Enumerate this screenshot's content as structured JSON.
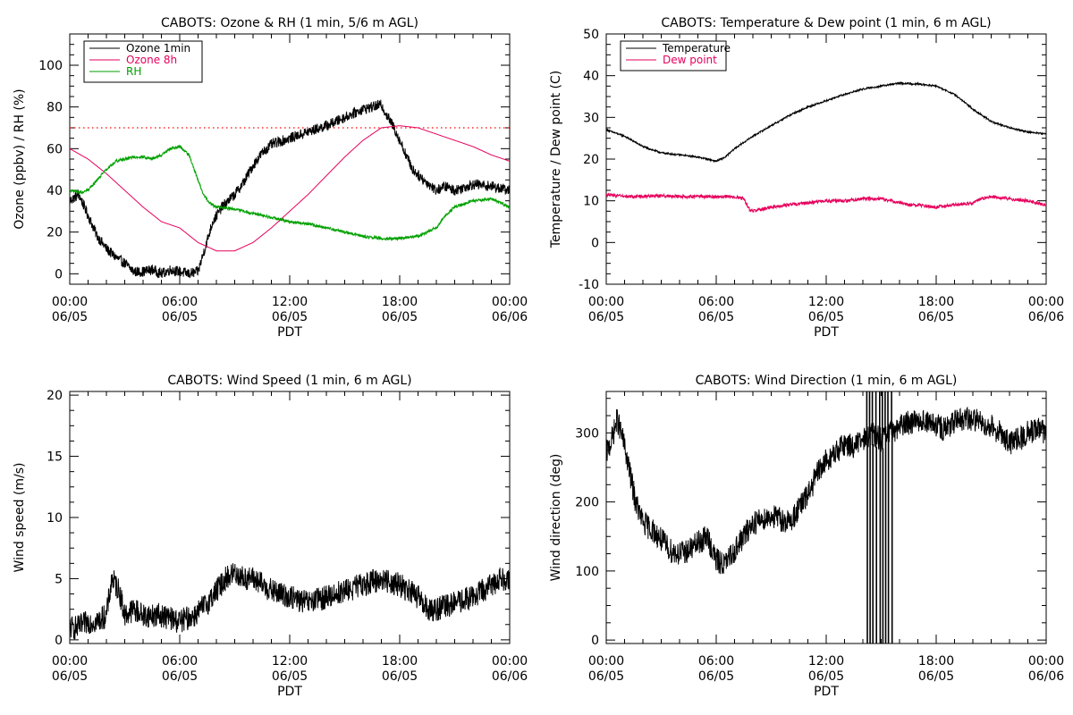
{
  "chart_data": [
    {
      "id": "ozone_rh",
      "type": "line",
      "title": "CABOTS: Ozone & RH (1 min, 5/6 m AGL)",
      "xlabel": "PDT",
      "ylabel": "Ozone (ppbv) / RH (%)",
      "xlim": [
        0,
        24
      ],
      "ylim": [
        -5,
        115
      ],
      "xticks": [
        {
          "v": 0,
          "l1": "00:00",
          "l2": "06/05"
        },
        {
          "v": 6,
          "l1": "06:00",
          "l2": "06/05"
        },
        {
          "v": 12,
          "l1": "12:00",
          "l2": "06/05"
        },
        {
          "v": 18,
          "l1": "18:00",
          "l2": "06/05"
        },
        {
          "v": 24,
          "l1": "00:00",
          "l2": "06/06"
        }
      ],
      "yticks": [
        0,
        20,
        40,
        60,
        80,
        100
      ],
      "grid": false,
      "legend": "top-left",
      "hline": {
        "y": 70,
        "color": "#ff0000",
        "style": "dotted"
      },
      "series": [
        {
          "name": "Ozone 1min",
          "color": "#000000",
          "noise": 2.5,
          "x": [
            0,
            0.5,
            1,
            1.5,
            2,
            2.5,
            3,
            3.5,
            4,
            4.5,
            5,
            5.5,
            6,
            6.5,
            7,
            7.3,
            7.8,
            8.3,
            9,
            9.5,
            10,
            10.5,
            11,
            12,
            13,
            14,
            15,
            16,
            16.5,
            17,
            17.3,
            17.7,
            18.2,
            18.7,
            19.3,
            20,
            20.5,
            21,
            22,
            23,
            24
          ],
          "y": [
            35,
            38,
            28,
            18,
            12,
            8,
            5,
            1,
            1,
            2,
            0,
            2,
            1,
            0,
            1,
            10,
            25,
            32,
            38,
            44,
            52,
            58,
            62,
            65,
            68,
            71,
            75,
            79,
            80,
            81,
            76,
            70,
            60,
            50,
            45,
            40,
            42,
            40,
            43,
            42,
            40
          ]
        },
        {
          "name": "Ozone 8h",
          "color": "#e6005c",
          "noise": 0,
          "x": [
            0,
            1,
            2,
            3,
            4,
            5,
            6,
            7,
            8,
            9,
            10,
            11,
            12,
            13,
            14,
            15,
            16,
            17,
            18,
            19,
            20,
            21,
            22,
            23,
            24
          ],
          "y": [
            60,
            55,
            48,
            40,
            32,
            25,
            22,
            15,
            11,
            11,
            15,
            22,
            30,
            38,
            47,
            56,
            64,
            70,
            71,
            70,
            67,
            64,
            61,
            57,
            54
          ]
        },
        {
          "name": "RH",
          "color": "#00a000",
          "noise": 0.7,
          "x": [
            0,
            0.5,
            1,
            1.5,
            2,
            2.5,
            3,
            3.5,
            4,
            4.5,
            5,
            5.5,
            6,
            6.5,
            7,
            7.3,
            7.6,
            8,
            9,
            10,
            11,
            12,
            13,
            14,
            15,
            16,
            17,
            18,
            19,
            20,
            20.5,
            21,
            22,
            23,
            24
          ],
          "y": [
            40,
            39,
            40,
            45,
            50,
            54,
            55,
            56,
            56,
            55,
            57,
            60,
            61,
            57,
            45,
            38,
            34,
            32,
            31,
            29,
            27,
            25,
            24,
            22,
            20,
            18,
            17,
            17,
            18,
            22,
            28,
            32,
            35,
            36,
            32
          ]
        }
      ]
    },
    {
      "id": "temp_dew",
      "type": "line",
      "title": "CABOTS: Temperature & Dew point (1 min, 6 m AGL)",
      "xlabel": "PDT",
      "ylabel": "Temperature / Dew point (C)",
      "xlim": [
        0,
        24
      ],
      "ylim": [
        -10,
        50
      ],
      "xticks": [
        {
          "v": 0,
          "l1": "00:00",
          "l2": "06/05"
        },
        {
          "v": 6,
          "l1": "06:00",
          "l2": "06/05"
        },
        {
          "v": 12,
          "l1": "12:00",
          "l2": "06/05"
        },
        {
          "v": 18,
          "l1": "18:00",
          "l2": "06/05"
        },
        {
          "v": 24,
          "l1": "00:00",
          "l2": "06/06"
        }
      ],
      "yticks": [
        -10,
        0,
        10,
        20,
        30,
        40,
        50
      ],
      "grid": false,
      "legend": "top-left",
      "series": [
        {
          "name": "Temperature",
          "color": "#000000",
          "noise": 0.2,
          "x": [
            0,
            1,
            2,
            3,
            4,
            5,
            5.5,
            6,
            6.5,
            7,
            8,
            9,
            10,
            11,
            12,
            13,
            14,
            15,
            16,
            17,
            18,
            19,
            20,
            21,
            22,
            23,
            24
          ],
          "y": [
            27,
            25.5,
            23,
            21.5,
            21,
            20.5,
            20,
            19.5,
            20.5,
            22.5,
            25.5,
            28,
            30.5,
            32.5,
            34,
            35.5,
            36.8,
            37.5,
            38.2,
            38,
            37.5,
            35.5,
            32,
            29,
            27.5,
            26.5,
            26
          ]
        },
        {
          "name": "Dew point",
          "color": "#e6005c",
          "noise": 0.4,
          "x": [
            0,
            1,
            2,
            3,
            4,
            5,
            6,
            7,
            7.5,
            7.8,
            8,
            9,
            10,
            11,
            12,
            13,
            14,
            15,
            16,
            16.5,
            17,
            18,
            19,
            20,
            20.5,
            21,
            22,
            23,
            24
          ],
          "y": [
            11.5,
            11,
            11,
            11.2,
            11,
            11,
            11,
            11,
            10.5,
            8,
            7.5,
            8.5,
            9,
            9.5,
            10,
            10,
            10.5,
            10.5,
            9.5,
            9,
            9,
            8.5,
            9,
            9.5,
            10.5,
            11,
            10.5,
            10,
            9
          ]
        }
      ]
    },
    {
      "id": "wind_speed",
      "type": "line",
      "title": "CABOTS: Wind Speed (1 min, 6 m AGL)",
      "xlabel": "PDT",
      "ylabel": "Wind speed (m/s)",
      "xlim": [
        0,
        24
      ],
      "ylim": [
        -0.3,
        20.3
      ],
      "xticks": [
        {
          "v": 0,
          "l1": "00:00",
          "l2": "06/05"
        },
        {
          "v": 6,
          "l1": "06:00",
          "l2": "06/05"
        },
        {
          "v": 12,
          "l1": "12:00",
          "l2": "06/05"
        },
        {
          "v": 18,
          "l1": "18:00",
          "l2": "06/05"
        },
        {
          "v": 24,
          "l1": "00:00",
          "l2": "06/06"
        }
      ],
      "yticks": [
        0,
        5,
        10,
        15,
        20
      ],
      "grid": false,
      "series": [
        {
          "name": "",
          "color": "#000000",
          "noise": 1.0,
          "x": [
            0,
            0.5,
            1,
            1.5,
            2,
            2.3,
            2.7,
            3,
            3.5,
            4,
            5,
            6,
            6.8,
            7.5,
            8,
            8.5,
            9,
            9.5,
            10,
            11,
            12,
            13,
            14,
            15,
            16,
            17,
            18,
            19,
            19.5,
            20,
            21,
            22,
            23,
            23.5,
            24
          ],
          "y": [
            1,
            1,
            1.5,
            1.5,
            2,
            5,
            4,
            2,
            2.5,
            2,
            2,
            1.5,
            2,
            3,
            4,
            5,
            5.5,
            5,
            5,
            4,
            3.5,
            3,
            3.5,
            4,
            4.5,
            5,
            4.5,
            3.5,
            2.5,
            2.5,
            3,
            3.5,
            4.5,
            5,
            5
          ]
        }
      ]
    },
    {
      "id": "wind_dir",
      "type": "line",
      "title": "CABOTS: Wind Direction (1 min, 6 m AGL)",
      "xlabel": "PDT",
      "ylabel": "Wind direction (deg)",
      "xlim": [
        0,
        24
      ],
      "ylim": [
        -5,
        360
      ],
      "xticks": [
        {
          "v": 0,
          "l1": "00:00",
          "l2": "06/05"
        },
        {
          "v": 6,
          "l1": "06:00",
          "l2": "06/05"
        },
        {
          "v": 12,
          "l1": "12:00",
          "l2": "06/05"
        },
        {
          "v": 18,
          "l1": "18:00",
          "l2": "06/05"
        },
        {
          "v": 24,
          "l1": "00:00",
          "l2": "06/06"
        }
      ],
      "yticks": [
        0,
        100,
        200,
        300
      ],
      "grid": false,
      "series": [
        {
          "name": "",
          "color": "#000000",
          "noise": 18,
          "x": [
            0,
            0.3,
            0.6,
            1,
            1.3,
            1.6,
            2,
            2.5,
            3,
            3.5,
            4,
            4.5,
            5,
            5.5,
            6,
            6.5,
            7,
            7.5,
            8,
            8.5,
            9,
            9.5,
            10,
            10.5,
            11,
            11.5,
            12,
            12.5,
            13,
            13.5,
            14,
            14.5,
            15,
            15.5,
            16,
            16.5,
            17,
            17.5,
            18,
            18.5,
            19,
            19.5,
            20,
            20.5,
            21,
            21.5,
            22,
            22.5,
            23,
            23.5,
            24
          ],
          "y": [
            270,
            290,
            320,
            280,
            240,
            200,
            170,
            160,
            145,
            130,
            125,
            130,
            140,
            150,
            115,
            110,
            130,
            150,
            170,
            175,
            180,
            175,
            170,
            190,
            210,
            240,
            260,
            270,
            285,
            280,
            290,
            300,
            290,
            300,
            310,
            315,
            320,
            315,
            310,
            305,
            315,
            320,
            320,
            315,
            310,
            300,
            285,
            290,
            300,
            305,
            300
          ]
        }
      ],
      "dropouts": [
        14.2,
        14.35,
        14.5,
        14.7,
        14.9,
        15.05,
        15.2,
        15.35,
        15.55
      ]
    }
  ]
}
